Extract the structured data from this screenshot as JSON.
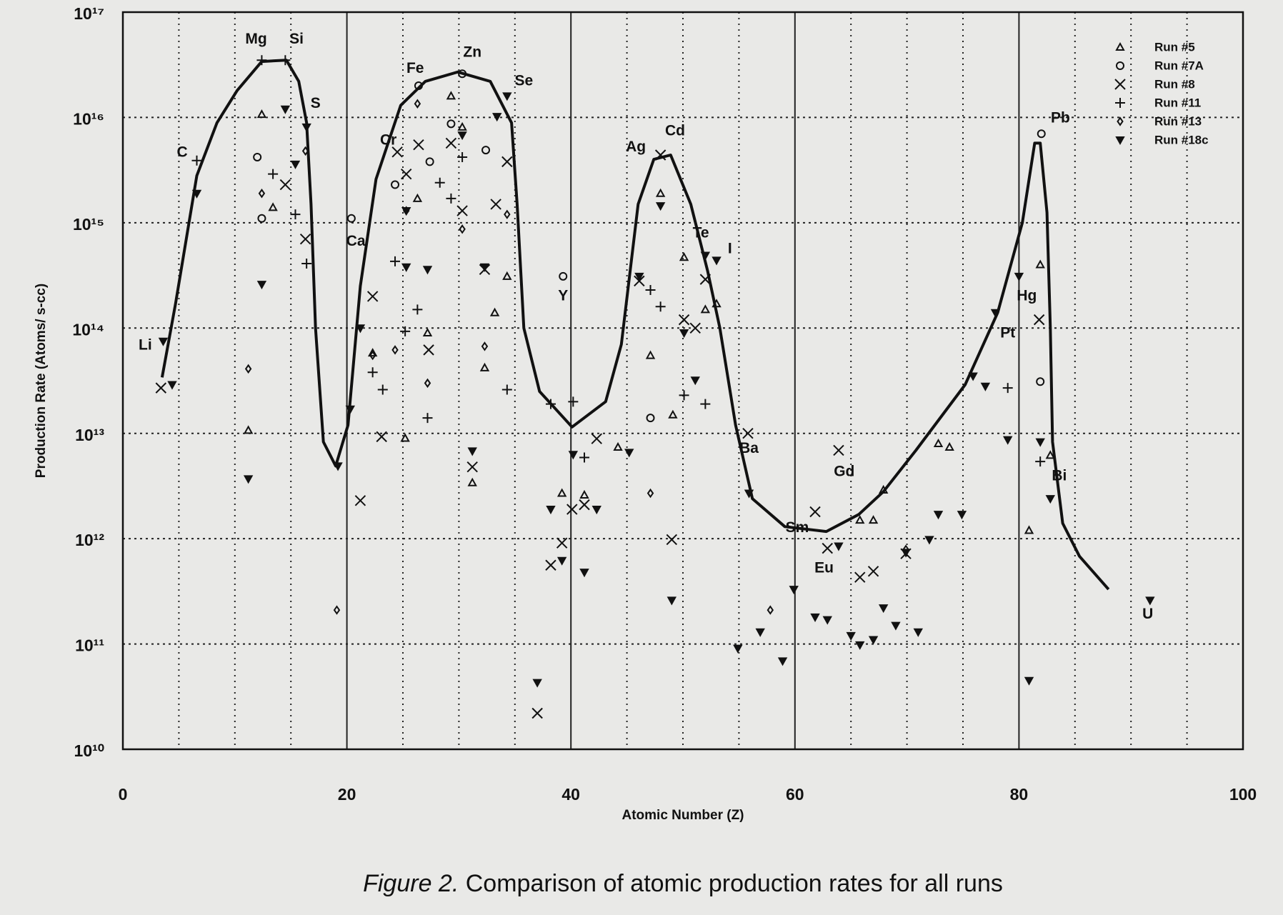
{
  "chart_data": {
    "type": "scatter",
    "yscale": "log",
    "grid": true,
    "legend": "upper right",
    "caption_label": "Figure 2.",
    "caption": "Comparison of atomic production rates for all runs",
    "xlabel": "Atomic Number (Z)",
    "ylabel": "Production Rate (Atoms/ s-cc)",
    "xlim": [
      0,
      100
    ],
    "xticks": [
      0,
      20,
      40,
      60,
      80,
      100
    ],
    "ylim": [
      10000000000.0,
      1e+17
    ],
    "yticks": [
      {
        "value": 10000000000.0,
        "label": "10¹⁰"
      },
      {
        "value": 100000000000.0,
        "label": "10¹¹"
      },
      {
        "value": 1000000000000.0,
        "label": "10¹²"
      },
      {
        "value": 10000000000000.0,
        "label": "10¹³"
      },
      {
        "value": 100000000000000.0,
        "label": "10¹⁴"
      },
      {
        "value": 1000000000000000.0,
        "label": "10¹⁵"
      },
      {
        "value": 1e+16,
        "label": "10¹⁶"
      },
      {
        "value": 1e+17,
        "label": "10¹⁷"
      }
    ],
    "series": [
      {
        "name": "Run #5",
        "marker": "triangle",
        "color": "#111111",
        "x": [
          11.2,
          12.4,
          13.4,
          22.3,
          25.2,
          26.3,
          27.2,
          29.3,
          30.3,
          31.2,
          32.3,
          33.2,
          34.3,
          39.2,
          41.2,
          44.2,
          47.1,
          48.0,
          49.1,
          50.1,
          52.0,
          53.0,
          65.8,
          67.0,
          67.9,
          72.8,
          73.8,
          80.9,
          81.9,
          82.8
        ],
        "values": [
          10700000000000.0,
          1.07e+16,
          1400000000000000.0,
          58000000000000.0,
          9000000000000.0,
          1700000000000000.0,
          90000000000000.0,
          1.6e+16,
          8100000000000000.0,
          3400000000000.0,
          42000000000000.0,
          140000000000000.0,
          310000000000000.0,
          2700000000000.0,
          2600000000000.0,
          7400000000000.0,
          55000000000000.0,
          1900000000000000.0,
          15000000000000.0,
          470000000000000.0,
          150000000000000.0,
          170000000000000.0,
          1500000000000.0,
          1500000000000.0,
          2900000000000.0,
          8000000000000.0,
          7400000000000.0,
          1200000000000.0,
          400000000000000.0,
          6200000000000.0
        ]
      },
      {
        "name": "Run #7A",
        "marker": "circle",
        "color": "#111111",
        "x": [
          12.0,
          12.4,
          20.4,
          24.3,
          26.4,
          27.4,
          29.3,
          30.3,
          32.4,
          39.3,
          47.1,
          81.9,
          82.0
        ],
        "values": [
          4200000000000000.0,
          1100000000000000.0,
          1100000000000000.0,
          2300000000000000.0,
          2e+16,
          3800000000000000.0,
          8700000000000000.0,
          2.6e+16,
          4900000000000000.0,
          310000000000000.0,
          14000000000000.0,
          31000000000000.0,
          7000000000000000.0
        ]
      },
      {
        "name": "Run #8",
        "marker": "x",
        "color": "#111111",
        "x": [
          3.4,
          14.5,
          16.3,
          22.3,
          21.2,
          23.1,
          24.5,
          25.3,
          26.4,
          27.3,
          29.3,
          30.3,
          31.2,
          32.3,
          33.3,
          34.3,
          37.0,
          38.2,
          39.2,
          40.1,
          41.2,
          42.3,
          46.1,
          48.0,
          49.0,
          50.1,
          51.1,
          52.0,
          55.8,
          61.8,
          62.9,
          63.9,
          65.8,
          67.0,
          69.9,
          81.8
        ],
        "values": [
          27000000000000.0,
          2300000000000000.0,
          700000000000000.0,
          200000000000000.0,
          2300000000000.0,
          9300000000000.0,
          4700000000000000.0,
          2900000000000000.0,
          5500000000000000.0,
          62000000000000.0,
          5700000000000000.0,
          1300000000000000.0,
          4800000000000.0,
          360000000000000.0,
          1500000000000000.0,
          3800000000000000.0,
          22000000000.0,
          560000000000.0,
          910000000000.0,
          1900000000000.0,
          2100000000000.0,
          8900000000000.0,
          280000000000000.0,
          4400000000000000.0,
          980000000000.0,
          120000000000000.0,
          100000000000000.0,
          290000000000000.0,
          10000000000000.0,
          1800000000000.0,
          810000000000.0,
          6900000000000.0,
          430000000000.0,
          490000000000.0,
          720000000000.0,
          120000000000000.0
        ]
      },
      {
        "name": "Run #11",
        "marker": "plus",
        "color": "#111111",
        "x": [
          6.6,
          12.4,
          13.4,
          14.5,
          15.4,
          16.4,
          22.3,
          23.2,
          24.3,
          25.2,
          26.3,
          27.2,
          28.3,
          29.3,
          30.3,
          34.3,
          38.2,
          40.2,
          41.2,
          47.1,
          48.0,
          50.1,
          52.0,
          79.0,
          81.9
        ],
        "values": [
          3900000000000000.0,
          3.5e+16,
          2900000000000000.0,
          3.5e+16,
          1200000000000000.0,
          410000000000000.0,
          38000000000000.0,
          26000000000000.0,
          430000000000000.0,
          93000000000000.0,
          150000000000000.0,
          14000000000000.0,
          2400000000000000.0,
          1700000000000000.0,
          4200000000000000.0,
          26000000000000.0,
          19000000000000.0,
          20000000000000.0,
          5900000000000.0,
          230000000000000.0,
          160000000000000.0,
          23000000000000.0,
          19000000000000.0,
          27000000000000.0,
          5400000000000.0
        ]
      },
      {
        "name": "Run #13",
        "marker": "diamond",
        "color": "#111111",
        "x": [
          11.2,
          12.4,
          16.3,
          19.1,
          22.3,
          24.3,
          25.3,
          26.3,
          27.2,
          30.3,
          32.3,
          34.3,
          47.1,
          57.8,
          69.9
        ],
        "values": [
          41000000000000.0,
          1900000000000000.0,
          4800000000000000.0,
          210000000000.0,
          55000000000000.0,
          62000000000000.0,
          1300000000000000.0,
          1.35e+16,
          30000000000000.0,
          870000000000000.0,
          67000000000000.0,
          1200000000000000.0,
          2700000000000.0,
          210000000000.0,
          790000000000.0
        ]
      },
      {
        "name": "Run #18c",
        "marker": "invtriangle",
        "color": "#111111",
        "x": [
          3.6,
          4.4,
          6.6,
          11.2,
          12.4,
          14.5,
          15.4,
          16.4,
          19.2,
          20.3,
          21.2,
          25.3,
          25.3,
          27.2,
          30.3,
          31.2,
          32.3,
          33.4,
          34.3,
          37.0,
          38.2,
          39.2,
          40.2,
          41.2,
          42.3,
          45.2,
          46.1,
          48.0,
          49.0,
          50.1,
          51.1,
          52.0,
          53.0,
          54.9,
          55.9,
          56.9,
          58.9,
          59.9,
          61.8,
          62.9,
          63.9,
          65.0,
          65.8,
          67.0,
          67.9,
          69.0,
          69.9,
          71.0,
          72.0,
          72.8,
          74.9,
          75.9,
          77.0,
          77.9,
          79.0,
          80.0,
          80.9,
          81.9,
          82.8,
          91.7
        ],
        "values": [
          75000000000000.0,
          29000000000000.0,
          1900000000000000.0,
          3700000000000.0,
          260000000000000.0,
          1.2e+16,
          3600000000000000.0,
          8100000000000000.0,
          4900000000000.0,
          17000000000000.0,
          100000000000000.0,
          1300000000000000.0,
          380000000000000.0,
          360000000000000.0,
          6800000000000000.0,
          6800000000000.0,
          380000000000000.0,
          1.02e+16,
          1.6e+16,
          43000000000.0,
          1900000000000.0,
          620000000000.0,
          6300000000000.0,
          480000000000.0,
          1900000000000.0,
          6600000000000.0,
          310000000000000.0,
          1450000000000000.0,
          260000000000.0,
          90000000000000.0,
          32000000000000.0,
          490000000000000.0,
          440000000000000.0,
          91000000000.0,
          2700000000000.0,
          130000000000.0,
          69000000000.0,
          330000000000.0,
          180000000000.0,
          170000000000.0,
          850000000000.0,
          120000000000.0,
          98000000000.0,
          110000000000.0,
          220000000000.0,
          150000000000.0,
          740000000000.0,
          130000000000.0,
          980000000000.0,
          1700000000000.0,
          1700000000000.0,
          35000000000000.0,
          28000000000000.0,
          140000000000000.0,
          8700000000000.0,
          310000000000000.0,
          45000000000.0,
          8300000000000.0,
          2400000000000.0,
          260000000000.0
        ]
      }
    ],
    "curve": {
      "color": "#111111",
      "x": [
        3.5,
        4.7,
        6.6,
        8.4,
        10.2,
        12.4,
        14.6,
        15.7,
        16.4,
        16.8,
        17.2,
        17.9,
        19.0,
        20.1,
        21.2,
        22.6,
        24.8,
        27.0,
        29.9,
        32.8,
        34.7,
        35.2,
        35.8,
        37.2,
        40.1,
        43.1,
        44.5,
        46.0,
        47.4,
        48.9,
        50.7,
        52.2,
        53.3,
        54.7,
        56.2,
        59.1,
        62.8,
        65.7,
        67.9,
        70.8,
        75.2,
        78.1,
        80.3,
        81.4,
        81.9,
        82.5,
        82.8,
        83.0,
        83.9,
        85.4,
        88.0
      ],
      "values": [
        34000000000000.0,
        170000000000000.0,
        2800000000000000.0,
        8900000000000000.0,
        1.8e+16,
        3.4e+16,
        3.5e+16,
        2.2e+16,
        8900000000000000.0,
        1500000000000000.0,
        100000000000000.0,
        8300000000000.0,
        4900000000000.0,
        12000000000000.0,
        250000000000000.0,
        2600000000000000.0,
        1.3e+16,
        2.2e+16,
        2.7e+16,
        2.2e+16,
        8900000000000000.0,
        1500000000000000.0,
        100000000000000.0,
        25000000000000.0,
        11500000000000.0,
        20000000000000.0,
        70000000000000.0,
        1500000000000000.0,
        4000000000000000.0,
        4400000000000000.0,
        1500000000000000.0,
        350000000000000.0,
        100000000000000.0,
        12000000000000.0,
        2400000000000.0,
        1300000000000.0,
        1170000000000.0,
        1700000000000.0,
        2800000000000.0,
        6900000000000.0,
        29000000000000.0,
        140000000000000.0,
        1000000000000000.0,
        5700000000000000.0,
        5700000000000000.0,
        1250000000000000.0,
        100000000000000.0,
        8300000000000.0,
        1400000000000.0,
        680000000000.0,
        330000000000.0
      ]
    },
    "annotations": [
      {
        "text": "Li",
        "x": 2.0,
        "y": 68000000000000.0
      },
      {
        "text": "C",
        "x": 5.3,
        "y": 4600000000000000.0
      },
      {
        "text": "Mg",
        "x": 11.9,
        "y": 5.5e+16
      },
      {
        "text": "Si",
        "x": 15.5,
        "y": 5.5e+16
      },
      {
        "text": "S",
        "x": 17.2,
        "y": 1.35e+16
      },
      {
        "text": "Ca",
        "x": 20.8,
        "y": 660000000000000.0
      },
      {
        "text": "Cr",
        "x": 23.7,
        "y": 6000000000000000.0
      },
      {
        "text": "Fe",
        "x": 26.1,
        "y": 2.9e+16
      },
      {
        "text": "Zn",
        "x": 31.2,
        "y": 4.1e+16
      },
      {
        "text": "Se",
        "x": 35.8,
        "y": 2.2e+16
      },
      {
        "text": "Ag",
        "x": 45.8,
        "y": 5200000000000000.0
      },
      {
        "text": "Cd",
        "x": 49.3,
        "y": 7400000000000000.0
      },
      {
        "text": "Te",
        "x": 51.6,
        "y": 790000000000000.0
      },
      {
        "text": "I",
        "x": 54.2,
        "y": 560000000000000.0
      },
      {
        "text": "Y",
        "x": 39.3,
        "y": 200000000000000.0
      },
      {
        "text": "Ba",
        "x": 55.9,
        "y": 7100000000000.0
      },
      {
        "text": "Sm",
        "x": 60.2,
        "y": 1260000000000.0
      },
      {
        "text": "Gd",
        "x": 64.4,
        "y": 4300000000000.0
      },
      {
        "text": "Eu",
        "x": 62.6,
        "y": 520000000000.0
      },
      {
        "text": "Hg",
        "x": 80.7,
        "y": 200000000000000.0
      },
      {
        "text": "Pt",
        "x": 79.0,
        "y": 89000000000000.0
      },
      {
        "text": "Pb",
        "x": 83.7,
        "y": 9800000000000000.0
      },
      {
        "text": "Bi",
        "x": 83.6,
        "y": 3900000000000.0
      },
      {
        "text": "U",
        "x": 91.5,
        "y": 190000000000.0
      }
    ]
  }
}
